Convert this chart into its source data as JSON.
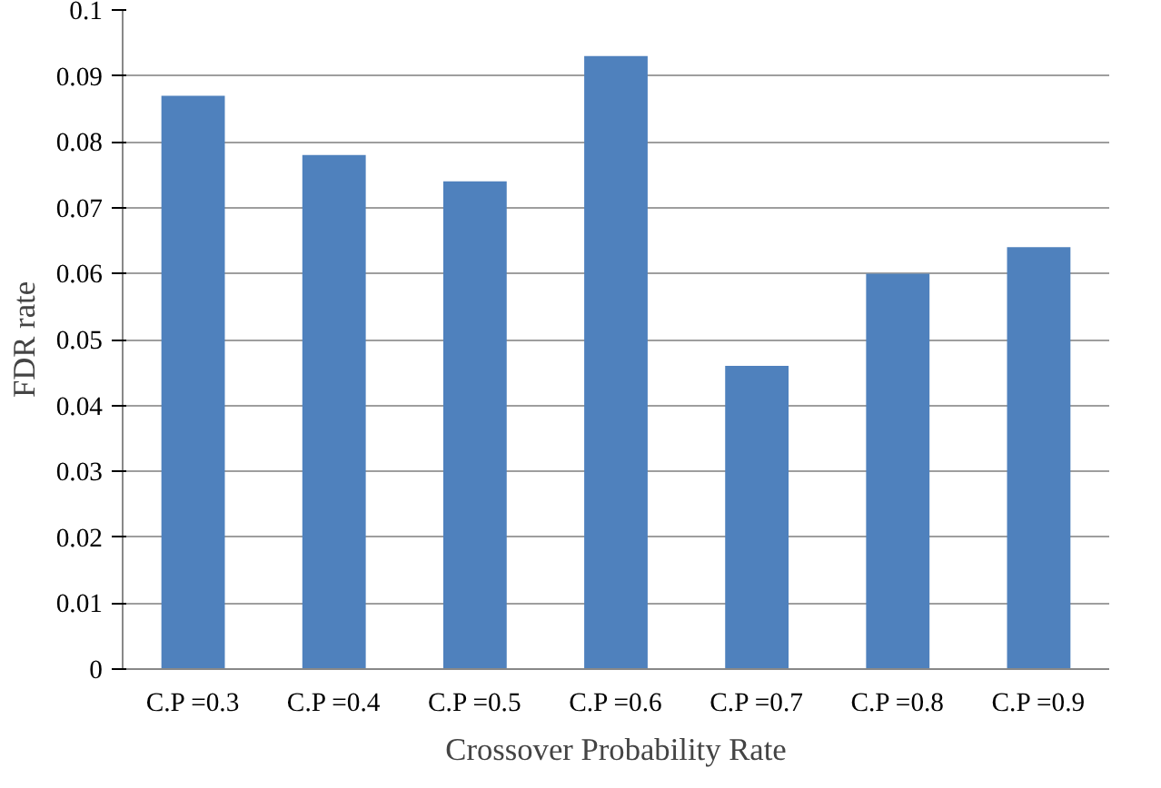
{
  "chart_data": {
    "type": "bar",
    "xlabel": "Crossover Probability Rate",
    "ylabel": "FDR rate",
    "categories": [
      "C.P =0.3",
      "C.P =0.4",
      "C.P =0.5",
      "C.P =0.6",
      "C.P =0.7",
      "C.P =0.8",
      "C.P =0.9"
    ],
    "values": [
      0.087,
      0.078,
      0.074,
      0.093,
      0.046,
      0.06,
      0.064
    ],
    "color": "#4f81bd",
    "ylim": [
      0,
      0.1
    ],
    "yticks": [
      0,
      {
        "value": 0.01,
        "label": "0.01"
      },
      {
        "value": 0.02,
        "label": "0.02"
      },
      {
        "value": 0.03,
        "label": "0.03"
      },
      {
        "value": 0.04,
        "label": "0.04"
      },
      {
        "value": 0.05,
        "label": "0.05"
      },
      {
        "value": 0.06,
        "label": "0.06"
      },
      {
        "value": 0.07,
        "label": "0.07"
      },
      {
        "value": 0.08,
        "label": "0.08"
      },
      {
        "value": 0.09,
        "label": "0.09"
      },
      {
        "value": 0.1,
        "label": "0.1"
      }
    ],
    "grid": "y"
  }
}
